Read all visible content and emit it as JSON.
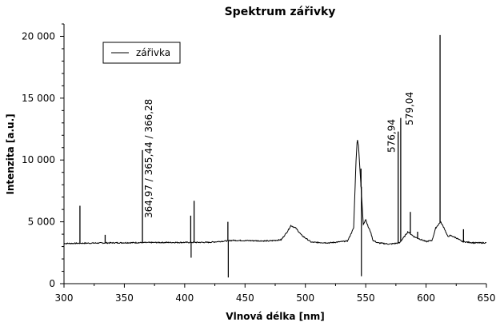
{
  "chart_data": {
    "type": "line",
    "title": "Spektrum zářivky",
    "xlabel": "Vlnová délka [nm]",
    "ylabel": "Intenzita [a.u.]",
    "xlim": [
      300,
      650
    ],
    "ylim": [
      0,
      21000
    ],
    "x_ticks": [
      300,
      350,
      400,
      450,
      500,
      550,
      600,
      650
    ],
    "x_tick_labels": [
      "300",
      "350",
      "400",
      "450",
      "500",
      "550",
      "600",
      "650"
    ],
    "y_ticks": [
      0,
      5000,
      10000,
      15000,
      20000
    ],
    "y_tick_labels": [
      "0",
      "5 000",
      "10 000",
      "15 000",
      "20 000"
    ],
    "legend": {
      "position": "top-left",
      "entries": [
        "zářivka"
      ]
    },
    "series": [
      {
        "name": "zářivka",
        "color": "#000000",
        "baseline": [
          [
            300,
            3250
          ],
          [
            340,
            3300
          ],
          [
            380,
            3330
          ],
          [
            420,
            3340
          ],
          [
            440,
            3500
          ],
          [
            470,
            3450
          ],
          [
            480,
            3550
          ],
          [
            485,
            4200
          ],
          [
            488,
            4700
          ],
          [
            492,
            4500
          ],
          [
            497,
            3900
          ],
          [
            505,
            3350
          ],
          [
            520,
            3300
          ],
          [
            535,
            3450
          ],
          [
            540,
            4500
          ],
          [
            542,
            10000
          ],
          [
            543,
            11700
          ],
          [
            544,
            11200
          ],
          [
            546,
            8000
          ],
          [
            548,
            4800
          ],
          [
            550,
            5200
          ],
          [
            552,
            4600
          ],
          [
            554,
            4200
          ],
          [
            556,
            3500
          ],
          [
            560,
            3300
          ],
          [
            570,
            3200
          ],
          [
            578,
            3300
          ],
          [
            582,
            3800
          ],
          [
            585,
            4200
          ],
          [
            590,
            3800
          ],
          [
            595,
            3600
          ],
          [
            600,
            3400
          ],
          [
            605,
            3500
          ],
          [
            608,
            4500
          ],
          [
            612,
            5000
          ],
          [
            615,
            4500
          ],
          [
            618,
            3800
          ],
          [
            620,
            3900
          ],
          [
            625,
            3700
          ],
          [
            630,
            3400
          ],
          [
            640,
            3300
          ],
          [
            650,
            3300
          ]
        ],
        "peaks": [
          {
            "x": 313.2,
            "y": 6300
          },
          {
            "x": 334.1,
            "y": 3950
          },
          {
            "x": 365.0,
            "y": 10800
          },
          {
            "x": 405.0,
            "y": 5500,
            "y_min": 2100
          },
          {
            "x": 407.8,
            "y": 6700
          },
          {
            "x": 435.8,
            "y": 5000,
            "y_min": 500
          },
          {
            "x": 546.1,
            "y": 9300,
            "y_min": 600
          },
          {
            "x": 576.9,
            "y": 12300
          },
          {
            "x": 579.0,
            "y": 13400
          },
          {
            "x": 587.0,
            "y": 5800
          },
          {
            "x": 593.0,
            "y": 4200
          },
          {
            "x": 611.6,
            "y": 20100
          },
          {
            "x": 631.0,
            "y": 4400
          }
        ]
      }
    ],
    "annotations": [
      {
        "text": "364,97 / 365,44 / 366,28",
        "x": 373,
        "y": 5300
      },
      {
        "text": "576,94",
        "x": 574,
        "y": 10600
      },
      {
        "text": "579,04",
        "x": 589,
        "y": 12800
      }
    ]
  }
}
